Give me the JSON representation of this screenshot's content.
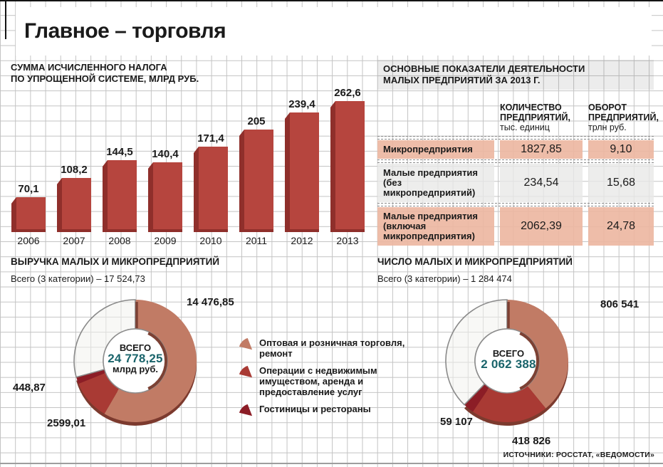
{
  "page": {
    "title": "Главное – торговля",
    "source": "ИСТОЧНИКИ: РОССТАТ, «ВЕДОМОСТИ»"
  },
  "colors": {
    "bar": "#b6453e",
    "bar_dark": "#8f2f2b",
    "salmon": "#c17b65",
    "red": "#a93a34",
    "dark_red": "#8c1d26",
    "white_slice": "#f3f2ef",
    "rim": "#7c3a2e",
    "teal": "#1a646b",
    "table_salmon": "#ecb7a0",
    "table_gray": "#e9e9e7",
    "band_bg": "#ebebeb"
  },
  "chart_data": [
    {
      "type": "bar",
      "title_lines": [
        "СУММА ИСЧИСЛЕННОГО НАЛОГА",
        "ПО УПРОЩЕННОЙ СИСТЕМЕ, МЛРД РУБ."
      ],
      "categories": [
        "2006",
        "2007",
        "2008",
        "2009",
        "2010",
        "2011",
        "2012",
        "2013"
      ],
      "values": [
        70.1,
        108.2,
        144.5,
        140.4,
        171.4,
        205,
        239.4,
        262.6
      ],
      "value_labels": [
        "70,1",
        "108,2",
        "144,5",
        "140,4",
        "171,4",
        "205",
        "239,4",
        "262,6"
      ],
      "ylabel": "млрд руб.",
      "ylim": [
        0,
        280
      ],
      "grid": "graph-paper background"
    },
    {
      "type": "table",
      "title_lines": [
        "ОСНОВНЫЕ ПОКАЗАТЕЛИ ДЕЯТЕЛЬНОСТИ",
        "МАЛЫХ ПРЕДПРИЯТИЙ ЗА 2013 Г."
      ],
      "columns": [
        {
          "title": "КОЛИЧЕСТВО ПРЕДПРИЯТИЙ,",
          "unit": "тыс. единиц"
        },
        {
          "title": "ОБОРОТ ПРЕДПРИЯТИЙ,",
          "unit": "трлн руб."
        }
      ],
      "rows": [
        {
          "label": "Микропредприятия",
          "values": [
            "1827,85",
            "9,10"
          ],
          "highlight": true
        },
        {
          "label": "Малые предприятия (без микропредприятий)",
          "values": [
            "234,54",
            "15,68"
          ],
          "highlight": false
        },
        {
          "label": "Малые предприятия (включая микропредприятия)",
          "values": [
            "2062,39",
            "24,78"
          ],
          "highlight": true
        }
      ]
    },
    {
      "type": "pie",
      "subtype": "donut",
      "title": "ВЫРУЧКА МАЛЫХ И МИКРОПРЕДПРИЯТИЙ",
      "subtitle": "Всего (3 категории) – 17 524,73",
      "total": 24778.25,
      "center": {
        "label": "ВСЕГО",
        "value": "24 778,25",
        "unit": "млрд руб."
      },
      "slices": [
        {
          "name": "Оптовая и розничная торговля, ремонт",
          "value": 14476.85,
          "label": "14 476,85",
          "color_key": "salmon"
        },
        {
          "name": "Операции с недвижимым имуществом, аренда и предоставление услуг",
          "value": 2599.01,
          "label": "2599,01",
          "color_key": "red"
        },
        {
          "name": "Гостиницы и рестораны",
          "value": 448.87,
          "label": "448,87",
          "color_key": "dark_red"
        }
      ]
    },
    {
      "type": "pie",
      "subtype": "donut",
      "title": "ЧИСЛО МАЛЫХ И МИКРОПРЕДПРИЯТИЙ",
      "subtitle": "Всего (3 категории) – 1 284 474",
      "total": 2062388,
      "center": {
        "label": "ВСЕГО",
        "value": "2 062 388",
        "unit": ""
      },
      "slices": [
        {
          "name": "Оптовая и розничная торговля, ремонт",
          "value": 806541,
          "label": "806 541",
          "color_key": "salmon"
        },
        {
          "name": "Операции с недвижимым имуществом, аренда и предоставление услуг",
          "value": 418826,
          "label": "418 826",
          "color_key": "red"
        },
        {
          "name": "Гостиницы и рестораны",
          "value": 59107,
          "label": "59 107",
          "color_key": "dark_red"
        }
      ]
    }
  ],
  "legend": {
    "items": [
      {
        "label": "Оптовая и розничная торговля, ремонт",
        "color_key": "salmon"
      },
      {
        "label": "Операции с недвижимым имуществом, аренда и предоставление услуг",
        "color_key": "red"
      },
      {
        "label": "Гостиницы и рестораны",
        "color_key": "dark_red"
      }
    ]
  }
}
